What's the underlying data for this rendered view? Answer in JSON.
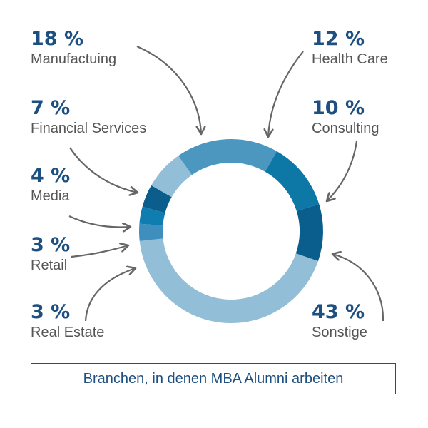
{
  "chart_data": {
    "type": "donut",
    "title": "Branchen, in denen MBA Alumni arbeiten",
    "unit": "%",
    "series": [
      {
        "label": "Manufactuing",
        "value": 18,
        "display": "18 %",
        "color": "#4b97c0"
      },
      {
        "label": "Health Care",
        "value": 12,
        "display": "12 %",
        "color": "#0d77a6"
      },
      {
        "label": "Consulting",
        "value": 10,
        "display": "10 %",
        "color": "#0a5e8e"
      },
      {
        "label": "Sonstige",
        "value": 43,
        "display": "43 %",
        "color": "#92bfd7"
      },
      {
        "label": "Real Estate",
        "value": 3,
        "display": "3 %",
        "color": "#3e8fbd"
      },
      {
        "label": "Retail",
        "value": 3,
        "display": "3 %",
        "color": "#0f7db0"
      },
      {
        "label": "Media",
        "value": 4,
        "display": "4 %",
        "color": "#0b5d8c"
      },
      {
        "label": "Financial Services",
        "value": 7,
        "display": "7 %",
        "color": "#92bfd7"
      }
    ]
  },
  "colors": {
    "percent_text": "#1d4f80",
    "label_text": "#555555",
    "arrow": "#666666",
    "caption_border": "#1d4f80"
  }
}
